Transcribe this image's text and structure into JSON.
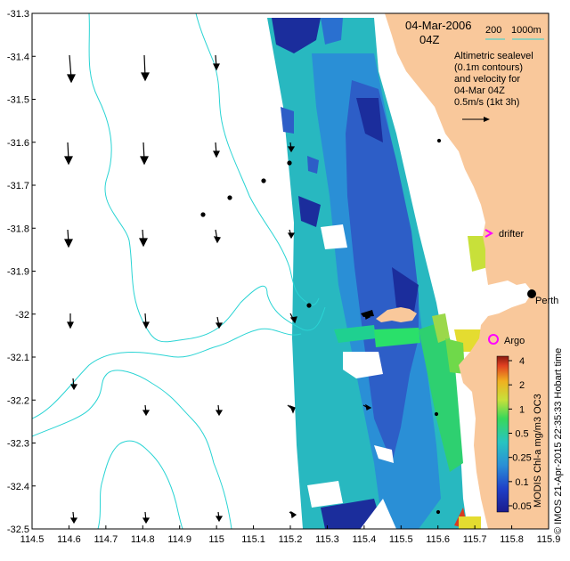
{
  "map": {
    "date_label": "04-Mar-2006",
    "time_label": "04Z",
    "bathymetry_legend": {
      "label_200": "200",
      "label_1000": "1000m",
      "color": "#2ad4d4"
    },
    "info_lines": [
      "Altimetric sealevel",
      "(0.1m contours)",
      "and velocity for",
      "04-Mar 04Z",
      "0.5m/s (1kt 3h)"
    ],
    "drifter_label": "drifter",
    "drifter_color": "#ff00ff",
    "argo_label": "Argo",
    "argo_color": "#ff00ff",
    "city_label": "Perth",
    "credit": "© IMOS 21-Apr-2015 22:35:33 Hobart time",
    "colorbar_title": "MODIS Chl-a mg/m3 OC3",
    "colorbar_ticks": [
      "4",
      "2",
      "1",
      "0.5",
      "0.25",
      "0.1",
      "0.05"
    ],
    "land_color": "#f9c89b",
    "x_ticks": [
      "114.5",
      "114.6",
      "114.7",
      "114.8",
      "114.9",
      "115",
      "115.1",
      "115.2",
      "115.3",
      "115.4",
      "115.5",
      "115.6",
      "115.7",
      "115.8",
      "115.9"
    ],
    "y_ticks": [
      "-31.3",
      "-31.4",
      "-31.5",
      "-31.6",
      "-31.7",
      "-31.8",
      "-31.9",
      "-32",
      "-32.1",
      "-32.2",
      "-32.3",
      "-32.4",
      "-32.5"
    ],
    "lon_range": [
      114.5,
      115.9
    ],
    "lat_range": [
      -32.5,
      -31.3
    ]
  }
}
